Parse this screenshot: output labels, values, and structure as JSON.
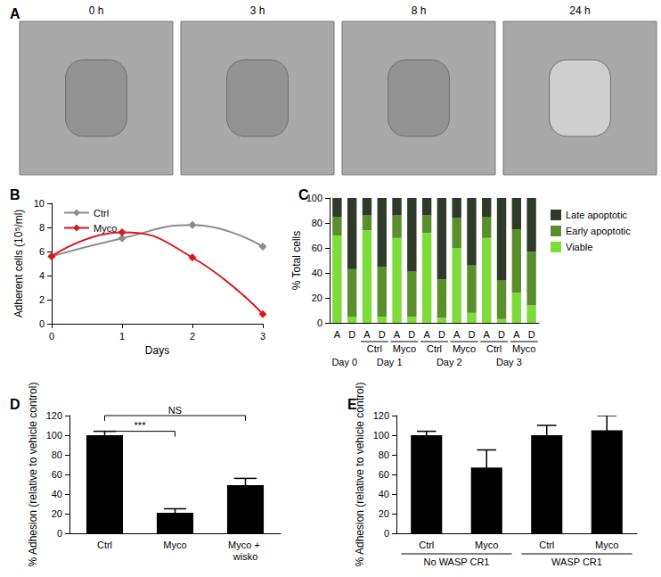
{
  "panel_a": {
    "title": "A",
    "timepoints": [
      "0 h",
      "3 h",
      "8 h",
      "24 h"
    ]
  },
  "chart_data": [
    {
      "type": "line",
      "title": "B",
      "x": [
        0,
        1,
        2,
        3
      ],
      "xlim": [
        0,
        3
      ],
      "xticks": [
        0,
        1,
        2,
        3
      ],
      "x_label": "Days",
      "y_label": "Adherent cells (10⁵/ml)",
      "ylim": [
        0,
        10
      ],
      "yticks": [
        0,
        2,
        4,
        6,
        8,
        10
      ],
      "grid": false,
      "legend": "upper left",
      "marker": "diamond",
      "line_style": "smooth",
      "series": [
        {
          "name": "Ctrl",
          "color": "#8c8c8c",
          "values": [
            5.6,
            7.1,
            8.2,
            6.4
          ]
        },
        {
          "name": "Myco",
          "color": "#d7191c",
          "values": [
            5.6,
            7.6,
            5.5,
            0.8
          ]
        }
      ]
    },
    {
      "type": "bar",
      "title": "C",
      "stacked": true,
      "categories": [
        "A",
        "D",
        "A",
        "D",
        "A",
        "D",
        "A",
        "D",
        "A",
        "D",
        "A",
        "D",
        "A",
        "D"
      ],
      "groups": [
        {
          "label": "Day 0",
          "count": 2
        },
        {
          "label": "Day 1",
          "count": 4,
          "subgroups": [
            "Ctrl",
            "Myco"
          ]
        },
        {
          "label": "Day 2",
          "count": 4,
          "subgroups": [
            "Ctrl",
            "Myco"
          ]
        },
        {
          "label": "Day 3",
          "count": 4,
          "subgroups": [
            "Ctrl",
            "Myco"
          ]
        }
      ],
      "y_label": "% Total cells",
      "ylim": [
        0,
        100
      ],
      "yticks": [
        0,
        20,
        40,
        60,
        80,
        100
      ],
      "grid": false,
      "legend": "right",
      "series": [
        {
          "name": "Late apoptotic",
          "color": "#2f3a2b",
          "values": [
            15,
            57,
            14,
            55,
            14,
            59,
            14,
            65,
            16,
            54,
            15,
            66,
            25,
            43
          ]
        },
        {
          "name": "Early apoptotic",
          "color": "#5b8f2e",
          "values": [
            15,
            38,
            12,
            40,
            18,
            36,
            14,
            31,
            24,
            38,
            17,
            31,
            51,
            43
          ]
        },
        {
          "name": "Viable",
          "color": "#7ddc3a",
          "values": [
            70,
            5,
            74,
            5,
            68,
            5,
            72,
            4,
            60,
            8,
            68,
            3,
            24,
            14
          ]
        }
      ]
    },
    {
      "type": "bar",
      "title": "D",
      "categories": [
        "Ctrl",
        "Myco",
        "Myco + wisko"
      ],
      "values": [
        100,
        21,
        49
      ],
      "errors": [
        4,
        4,
        7
      ],
      "color": "#000000",
      "y_label": "% Adhesion (relative to vehicle control)",
      "ylim": [
        0,
        120
      ],
      "yticks": [
        0,
        20,
        40,
        60,
        80,
        100,
        120
      ],
      "grid": false,
      "annotations": [
        {
          "text": "***",
          "from": "Ctrl",
          "to": "Myco",
          "y": 104
        },
        {
          "text": "NS",
          "from": "Ctrl",
          "to": "Myco + wisko",
          "y": 120
        }
      ]
    },
    {
      "type": "bar",
      "title": "E",
      "categories": [
        "Ctrl",
        "Myco",
        "Ctrl",
        "Myco"
      ],
      "groups": [
        {
          "label": "No WASP CR1",
          "count": 2
        },
        {
          "label": "WASP CR1",
          "count": 2
        }
      ],
      "values": [
        100,
        67,
        100,
        105
      ],
      "errors": [
        4,
        18,
        10,
        15
      ],
      "color": "#000000",
      "y_label": "% Adhesion (relative to vehicle control)",
      "ylim": [
        0,
        120
      ],
      "yticks": [
        0,
        20,
        40,
        60,
        80,
        100,
        120
      ],
      "grid": false
    }
  ]
}
